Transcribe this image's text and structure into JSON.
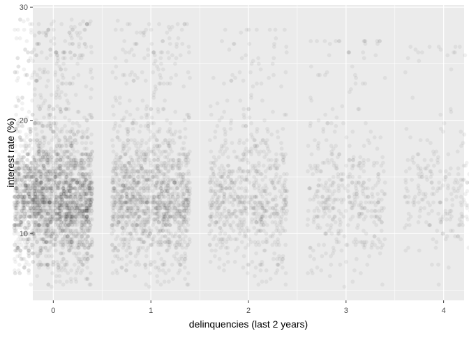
{
  "chart_data": {
    "type": "scatter",
    "title": "",
    "xlabel": "delinquencies (last 2 years)",
    "ylabel": "interest rate (%)",
    "x_ticks": [
      0,
      1,
      2,
      3,
      4
    ],
    "y_ticks": [
      10,
      20,
      30
    ],
    "xlim": [
      -0.21,
      4.21
    ],
    "ylim": [
      4.1,
      30.2
    ],
    "grid": true,
    "jitter_width": 0.4,
    "y_range": [
      5.3,
      28.9
    ],
    "point_color": "#000000",
    "panel_background": "#EBEBEB",
    "grid_color": "#FFFFFF",
    "series": [
      {
        "x": 0,
        "relative_density": 1.0,
        "y_min": 5.3,
        "y_max": 28.9
      },
      {
        "x": 1,
        "relative_density": 0.55,
        "y_min": 5.3,
        "y_max": 28.8
      },
      {
        "x": 2,
        "relative_density": 0.28,
        "y_min": 5.3,
        "y_max": 28.0
      },
      {
        "x": 3,
        "relative_density": 0.16,
        "y_min": 5.3,
        "y_max": 27.0
      },
      {
        "x": 4,
        "relative_density": 0.1,
        "y_min": 5.3,
        "y_max": 26.5
      }
    ]
  }
}
